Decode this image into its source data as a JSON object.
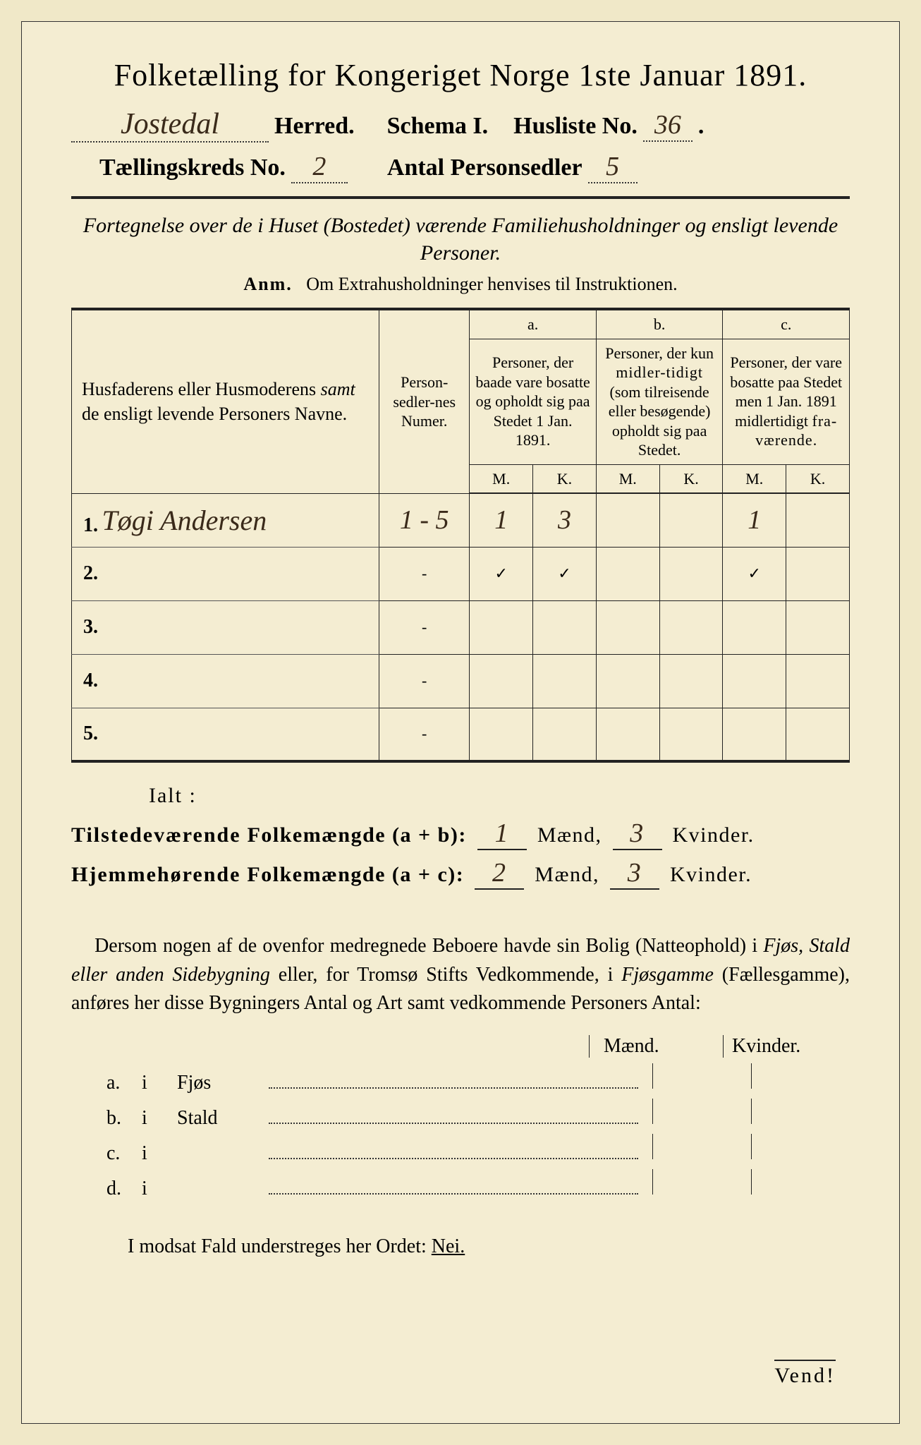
{
  "title": "Folketælling for Kongeriget Norge 1ste Januar 1891.",
  "header": {
    "herred_value": "Jostedal",
    "herred_label": "Herred.",
    "schema_label": "Schema I.",
    "husliste_label": "Husliste No.",
    "husliste_value": "36",
    "kreds_label": "Tællingskreds No.",
    "kreds_value": "2",
    "antal_label": "Antal Personsedler",
    "antal_value": "5"
  },
  "subtitle": "Fortegnelse over de i Huset (Bostedet) værende Familiehusholdninger og ensligt levende Personer.",
  "anm_label": "Anm.",
  "anm_text": "Om Extrahusholdninger henvises til Instruktionen.",
  "table": {
    "col_name": "Husfaderens eller Husmoderens samt de ensligt levende Personers Navne.",
    "col_num": "Person-sedler-nes Numer.",
    "a_label": "a.",
    "a_desc": "Personer, der baade vare bosatte og opholdt sig paa Stedet 1 Jan. 1891.",
    "b_label": "b.",
    "b_desc": "Personer, der kun midlertidigt (som tilreisende eller besøgende) opholdt sig paa Stedet.",
    "c_label": "c.",
    "c_desc": "Personer, der vare bosatte paa Stedet men 1 Jan. 1891 midlertidigt fraværende.",
    "M": "M.",
    "K": "K.",
    "rows": [
      {
        "n": "1.",
        "name": "Tøgi Andersen",
        "num": "1 - 5",
        "aM": "1",
        "aK": "3",
        "bM": "",
        "bK": "",
        "cM": "1",
        "cK": ""
      },
      {
        "n": "2.",
        "name": "",
        "num": "-",
        "aM": "✓",
        "aK": "✓",
        "bM": "",
        "bK": "",
        "cM": "✓",
        "cK": ""
      },
      {
        "n": "3.",
        "name": "",
        "num": "-",
        "aM": "",
        "aK": "",
        "bM": "",
        "bK": "",
        "cM": "",
        "cK": ""
      },
      {
        "n": "4.",
        "name": "",
        "num": "-",
        "aM": "",
        "aK": "",
        "bM": "",
        "bK": "",
        "cM": "",
        "cK": ""
      },
      {
        "n": "5.",
        "name": "",
        "num": "-",
        "aM": "",
        "aK": "",
        "bM": "",
        "bK": "",
        "cM": "",
        "cK": ""
      }
    ]
  },
  "totals": {
    "ialt": "Ialt :",
    "line1_label": "Tilstedeværende Folkemængde (a + b):",
    "line1_m": "1",
    "line1_k": "3",
    "line2_label": "Hjemmehørende Folkemængde (a + c):",
    "line2_m": "2",
    "line2_k": "3",
    "maend": "Mænd,",
    "kvinder": "Kvinder."
  },
  "para": "Dersom nogen af de ovenfor medregnede Beboere havde sin Bolig (Natteophold) i Fjøs, Stald eller anden Sidebygning eller, for Tromsø Stifts Vedkommende, i Fjøsgamme (Fællesgamme), anføres her disse Bygningers Antal og Art samt vedkommende Personers Antal:",
  "buildings": {
    "maend": "Mænd.",
    "kvinder": "Kvinder.",
    "rows": [
      {
        "lab": "a.",
        "i": "i",
        "name": "Fjøs"
      },
      {
        "lab": "b.",
        "i": "i",
        "name": "Stald"
      },
      {
        "lab": "c.",
        "i": "i",
        "name": ""
      },
      {
        "lab": "d.",
        "i": "i",
        "name": ""
      }
    ]
  },
  "nei_text": "I modsat Fald understreges her Ordet:",
  "nei": "Nei.",
  "vend": "Vend!",
  "colors": {
    "paper": "#f4edd2",
    "outer": "#f0e8c8",
    "ink": "#222222",
    "handwriting": "#3a2a1a"
  }
}
